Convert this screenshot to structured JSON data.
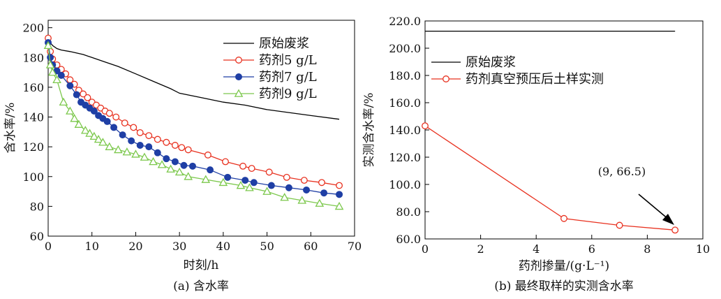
{
  "chart_data": [
    {
      "type": "line",
      "caption": "(a) 含水率",
      "xlabel": "时刻/h",
      "ylabel": "含水率/%",
      "xlim": [
        0,
        70
      ],
      "ylim": [
        60,
        205
      ],
      "xticks": [
        "0",
        "10",
        "20",
        "30",
        "40",
        "50",
        "60",
        "70"
      ],
      "yticks": [
        "60",
        "80",
        "100",
        "120",
        "140",
        "160",
        "180",
        "200"
      ],
      "legend_position": "top-right",
      "series": [
        {
          "name": "原始废浆",
          "color": "#000000",
          "marker": "none",
          "x": [
            0,
            0.5,
            1,
            2,
            3,
            5,
            8,
            10,
            13,
            16,
            20,
            24,
            28,
            30,
            35,
            40,
            45,
            50,
            55,
            60,
            66.5
          ],
          "y": [
            195,
            190,
            188,
            186,
            185,
            184,
            182,
            180,
            177,
            174,
            169,
            164,
            159,
            156,
            153,
            150,
            148,
            145,
            143,
            141,
            138.5
          ]
        },
        {
          "name": "药剂5 g/L",
          "color": "#e8311f",
          "marker": "open-circle",
          "x": [
            0,
            0.5,
            1,
            2,
            3,
            4,
            5,
            6,
            7,
            8,
            9,
            10,
            11,
            12,
            13,
            14,
            15.5,
            17.5,
            19.5,
            21,
            23,
            25,
            27,
            29,
            30.5,
            32,
            36.5,
            40.5,
            44.5,
            46.5,
            50.5,
            54.5,
            58.5,
            62.5,
            66.5
          ],
          "y": [
            193,
            184,
            179,
            175,
            172,
            169,
            165,
            162,
            158,
            155.5,
            153,
            150,
            148,
            146,
            144,
            142.5,
            140,
            136,
            133,
            129.5,
            127.5,
            125,
            123,
            121,
            119.5,
            118,
            114.5,
            110,
            107,
            105.5,
            103,
            99.5,
            97.5,
            96,
            94
          ]
        },
        {
          "name": "药剂7 g/L",
          "color": "#1f3fa5",
          "marker": "filled-circle",
          "x": [
            0,
            0.5,
            1,
            2,
            3,
            5,
            6.5,
            7.5,
            8.5,
            9.5,
            10.5,
            11.5,
            12.5,
            13.5,
            15,
            17,
            19,
            21,
            23,
            25,
            27,
            29,
            31,
            33,
            37,
            41,
            45,
            47,
            51,
            55,
            59,
            63,
            66.5
          ],
          "y": [
            190,
            180,
            175,
            171,
            168,
            161,
            155,
            150,
            148,
            146,
            144,
            141,
            139,
            137,
            133,
            128,
            124,
            121,
            120,
            116,
            112,
            110,
            107.5,
            107,
            104.5,
            99.5,
            97.5,
            96,
            94,
            92.5,
            91,
            89,
            88
          ]
        },
        {
          "name": "药剂9 g/L",
          "color": "#7cc84c",
          "marker": "open-triangle",
          "x": [
            0,
            0.5,
            1,
            2,
            3.5,
            5,
            6,
            7,
            8.5,
            9.5,
            10.5,
            11.5,
            12.5,
            14,
            16,
            18,
            20,
            22,
            24,
            26,
            28,
            30,
            32,
            36,
            40,
            44,
            46,
            50,
            54,
            58,
            62,
            66.5
          ],
          "y": [
            188,
            175,
            170,
            165,
            150,
            144,
            139,
            135,
            131,
            129,
            127,
            125,
            123,
            120,
            118,
            116.5,
            115,
            113,
            110,
            108,
            105,
            103,
            100,
            98,
            96,
            94,
            92.5,
            90,
            86,
            84,
            82,
            80
          ]
        }
      ]
    },
    {
      "type": "line",
      "caption": "(b) 最终取样的实测含水率",
      "xlabel": "药剂掺量/(g·L⁻¹)",
      "ylabel": "实测含水率/%",
      "xlim": [
        0,
        10
      ],
      "ylim": [
        60,
        220
      ],
      "xticks": [
        "0",
        "2",
        "4",
        "6",
        "8",
        "10"
      ],
      "yticks": [
        "60.0",
        "80.0",
        "100.0",
        "120.0",
        "140.0",
        "160.0",
        "180.0",
        "200.0",
        "220.0"
      ],
      "legend_position": "upper-left",
      "series": [
        {
          "name": "原始废浆",
          "color": "#000000",
          "marker": "none",
          "x": [
            0,
            9
          ],
          "y": [
            212.5,
            212.5
          ]
        },
        {
          "name": "药剂真空预压后土样实测",
          "color": "#e8311f",
          "marker": "open-circle",
          "x": [
            0,
            5,
            7,
            9
          ],
          "y": [
            143,
            75,
            70,
            66.5
          ]
        }
      ],
      "annotation": {
        "text": "(9, 66.5)",
        "x": 9,
        "y": 66.5
      }
    }
  ]
}
